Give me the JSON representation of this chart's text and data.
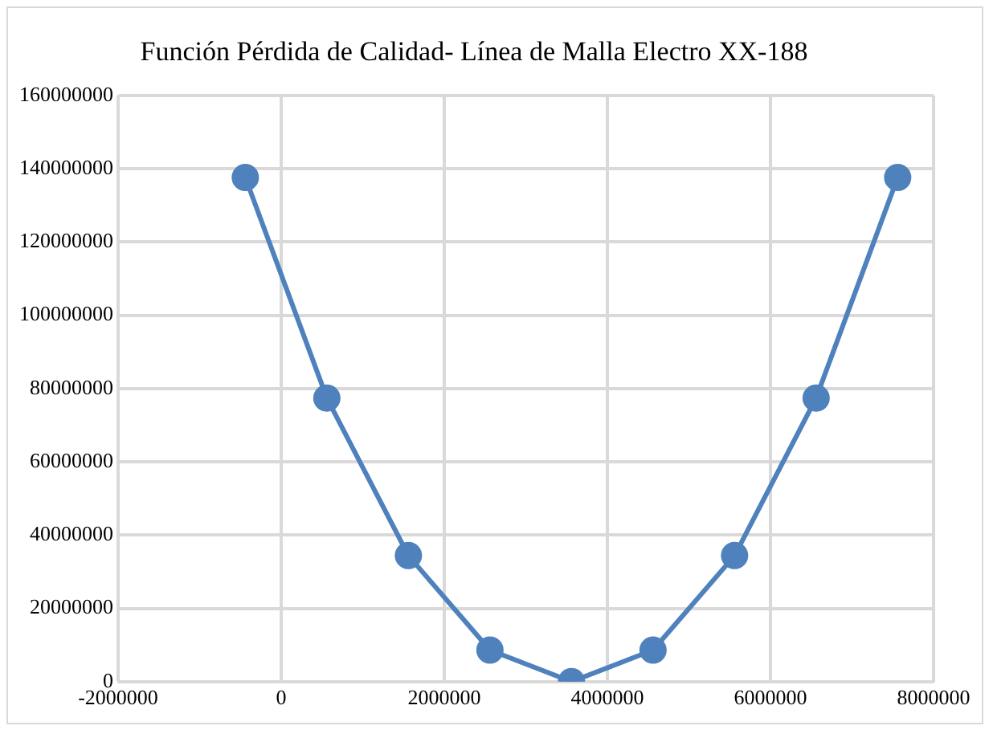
{
  "chart_data": {
    "type": "line",
    "title": "Función Pérdida de Calidad- Línea de Malla Electro XX-188",
    "x": [
      -440000,
      560000,
      1560000,
      2560000,
      3560000,
      4560000,
      5560000,
      6560000,
      7560000
    ],
    "series": [
      {
        "color": "#4f81bd",
        "values": [
          137600000,
          77400000,
          34400000,
          8600000,
          0,
          8600000,
          34400000,
          77400000,
          137600000
        ]
      }
    ],
    "xlim": [
      -2000000,
      8000000
    ],
    "xticks": [
      -2000000,
      0,
      2000000,
      4000000,
      6000000,
      8000000
    ],
    "ylim": [
      0,
      160000000
    ],
    "yticks": [
      0,
      20000000,
      40000000,
      60000000,
      80000000,
      100000000,
      120000000,
      140000000,
      160000000
    ],
    "grid": true,
    "legend": false,
    "marker": "circle",
    "line_style": "solid"
  }
}
